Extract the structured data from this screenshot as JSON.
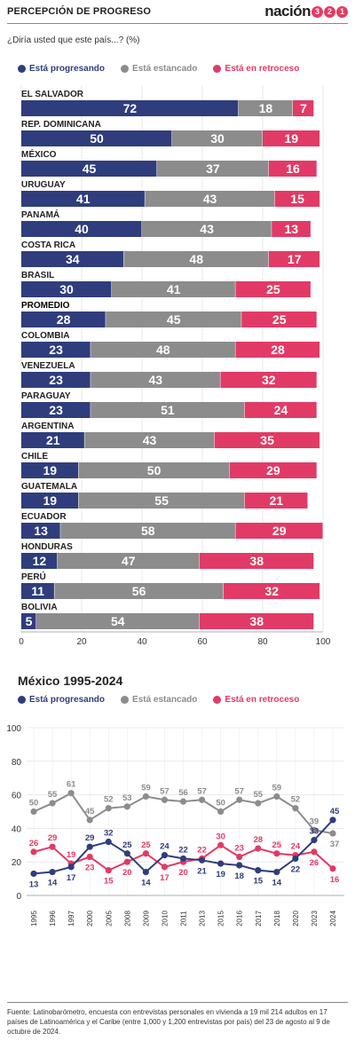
{
  "header": {
    "title": "PERCEPCIÓN DE PROGRESO",
    "logo_word": "nación",
    "logo_nums": [
      "3",
      "2",
      "1"
    ]
  },
  "question": "¿Diría usted que este país...? (%)",
  "colors": {
    "progresando": "#2f3d7d",
    "estancado": "#8c8c8c",
    "retroceso": "#e23a66"
  },
  "legend": [
    {
      "key": "progresando",
      "label": "Está progresando"
    },
    {
      "key": "estancado",
      "label": "Está estancado"
    },
    {
      "key": "retroceso",
      "label": "Está en retroceso"
    }
  ],
  "chart_data": [
    {
      "type": "bar",
      "stacked": true,
      "orientation": "horizontal",
      "categories": [
        "EL SALVADOR",
        "REP. DOMINICANA",
        "MÉXICO",
        "URUGUAY",
        "PANAMÁ",
        "COSTA RICA",
        "BRASIL",
        "PROMEDIO",
        "COLOMBIA",
        "VENEZUELA",
        "PARAGUAY",
        "ARGENTINA",
        "CHILE",
        "GUATEMALA",
        "ECUADOR",
        "HONDURAS",
        "PERÚ",
        "BOLIVIA"
      ],
      "highlight": "PROMEDIO",
      "series": [
        {
          "name": "Está progresando",
          "key": "progresando",
          "values": [
            72,
            50,
            45,
            41,
            40,
            34,
            30,
            28,
            23,
            23,
            23,
            21,
            19,
            19,
            13,
            12,
            11,
            5
          ]
        },
        {
          "name": "Está estancado",
          "key": "estancado",
          "values": [
            18,
            30,
            37,
            43,
            43,
            48,
            41,
            45,
            48,
            43,
            51,
            43,
            50,
            55,
            58,
            47,
            56,
            54
          ]
        },
        {
          "name": "Está en retroceso",
          "key": "retroceso",
          "values": [
            7,
            19,
            16,
            15,
            13,
            17,
            25,
            25,
            28,
            32,
            24,
            35,
            29,
            21,
            29,
            38,
            32,
            38
          ]
        }
      ],
      "xlim": [
        0,
        100
      ],
      "xticks": [
        0,
        20,
        40,
        60,
        80,
        100
      ],
      "grid": true
    },
    {
      "type": "line",
      "title": "México 1995-2024",
      "x": [
        "1995",
        "1996",
        "1997",
        "2000",
        "2005",
        "2008",
        "2009",
        "2010",
        "2011",
        "2013",
        "2015",
        "2016",
        "2017",
        "2018",
        "2020",
        "2023",
        "2024"
      ],
      "series": [
        {
          "name": "Está progresando",
          "key": "progresando",
          "values": [
            13,
            14,
            17,
            29,
            32,
            25,
            14,
            24,
            22,
            21,
            19,
            18,
            15,
            14,
            22,
            33,
            45
          ]
        },
        {
          "name": "Está estancado",
          "key": "estancado",
          "values": [
            50,
            55,
            61,
            45,
            52,
            53,
            59,
            57,
            56,
            57,
            50,
            57,
            55,
            59,
            52,
            39,
            37
          ]
        },
        {
          "name": "Está en retroceso",
          "key": "retroceso",
          "values": [
            26,
            29,
            19,
            23,
            15,
            20,
            25,
            17,
            20,
            22,
            30,
            23,
            28,
            25,
            24,
            26,
            16
          ]
        }
      ],
      "ylim": [
        0,
        100
      ],
      "yticks": [
        0,
        20,
        40,
        60,
        80,
        100
      ],
      "grid": true
    }
  ],
  "source": "Fuente: Latinobarómetro, encuesta con entrevistas personales en vivienda a 19 mil 214 adultos en 17 países de Latinoamérica y el Caribe (entre 1,000 y 1,200 entrevistas por país) del 23 de agosto al 9 de octubre de 2024."
}
